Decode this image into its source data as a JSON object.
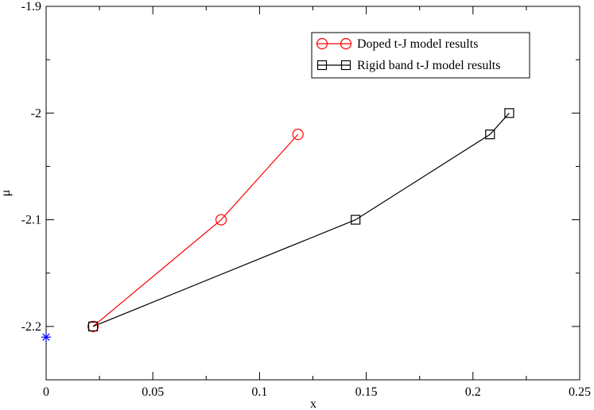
{
  "chart_data": {
    "type": "line",
    "xlabel": "x",
    "ylabel": "μ",
    "xlim": [
      0,
      0.25
    ],
    "ylim": [
      -2.25,
      -1.9
    ],
    "grid": false,
    "legend_position": "top-right",
    "x_ticks": [
      {
        "value": 0,
        "label": "0"
      },
      {
        "value": 0.05,
        "label": "0.05"
      },
      {
        "value": 0.1,
        "label": "0.1"
      },
      {
        "value": 0.15,
        "label": "0.15"
      },
      {
        "value": 0.2,
        "label": "0.2"
      },
      {
        "value": 0.25,
        "label": "0.25"
      }
    ],
    "y_ticks": [
      {
        "value": -1.9,
        "label": "-1.9"
      },
      {
        "value": -2.0,
        "label": "-2"
      },
      {
        "value": -2.1,
        "label": "-2.1"
      },
      {
        "value": -2.2,
        "label": "-2.2"
      }
    ],
    "series": [
      {
        "name": "Doped t-J model results",
        "color": "#ff0000",
        "marker": "circle",
        "points": [
          {
            "x": 0.022,
            "y": -2.2
          },
          {
            "x": 0.082,
            "y": -2.1
          },
          {
            "x": 0.118,
            "y": -2.02
          }
        ]
      },
      {
        "name": "Rigid band t-J model results",
        "color": "#000000",
        "marker": "square",
        "points": [
          {
            "x": 0.022,
            "y": -2.2
          },
          {
            "x": 0.145,
            "y": -2.1
          },
          {
            "x": 0.208,
            "y": -2.02
          },
          {
            "x": 0.217,
            "y": -2.0
          }
        ]
      }
    ],
    "extra_point": {
      "x": 0,
      "y": -2.21,
      "color": "#0000ff",
      "marker": "star"
    }
  }
}
